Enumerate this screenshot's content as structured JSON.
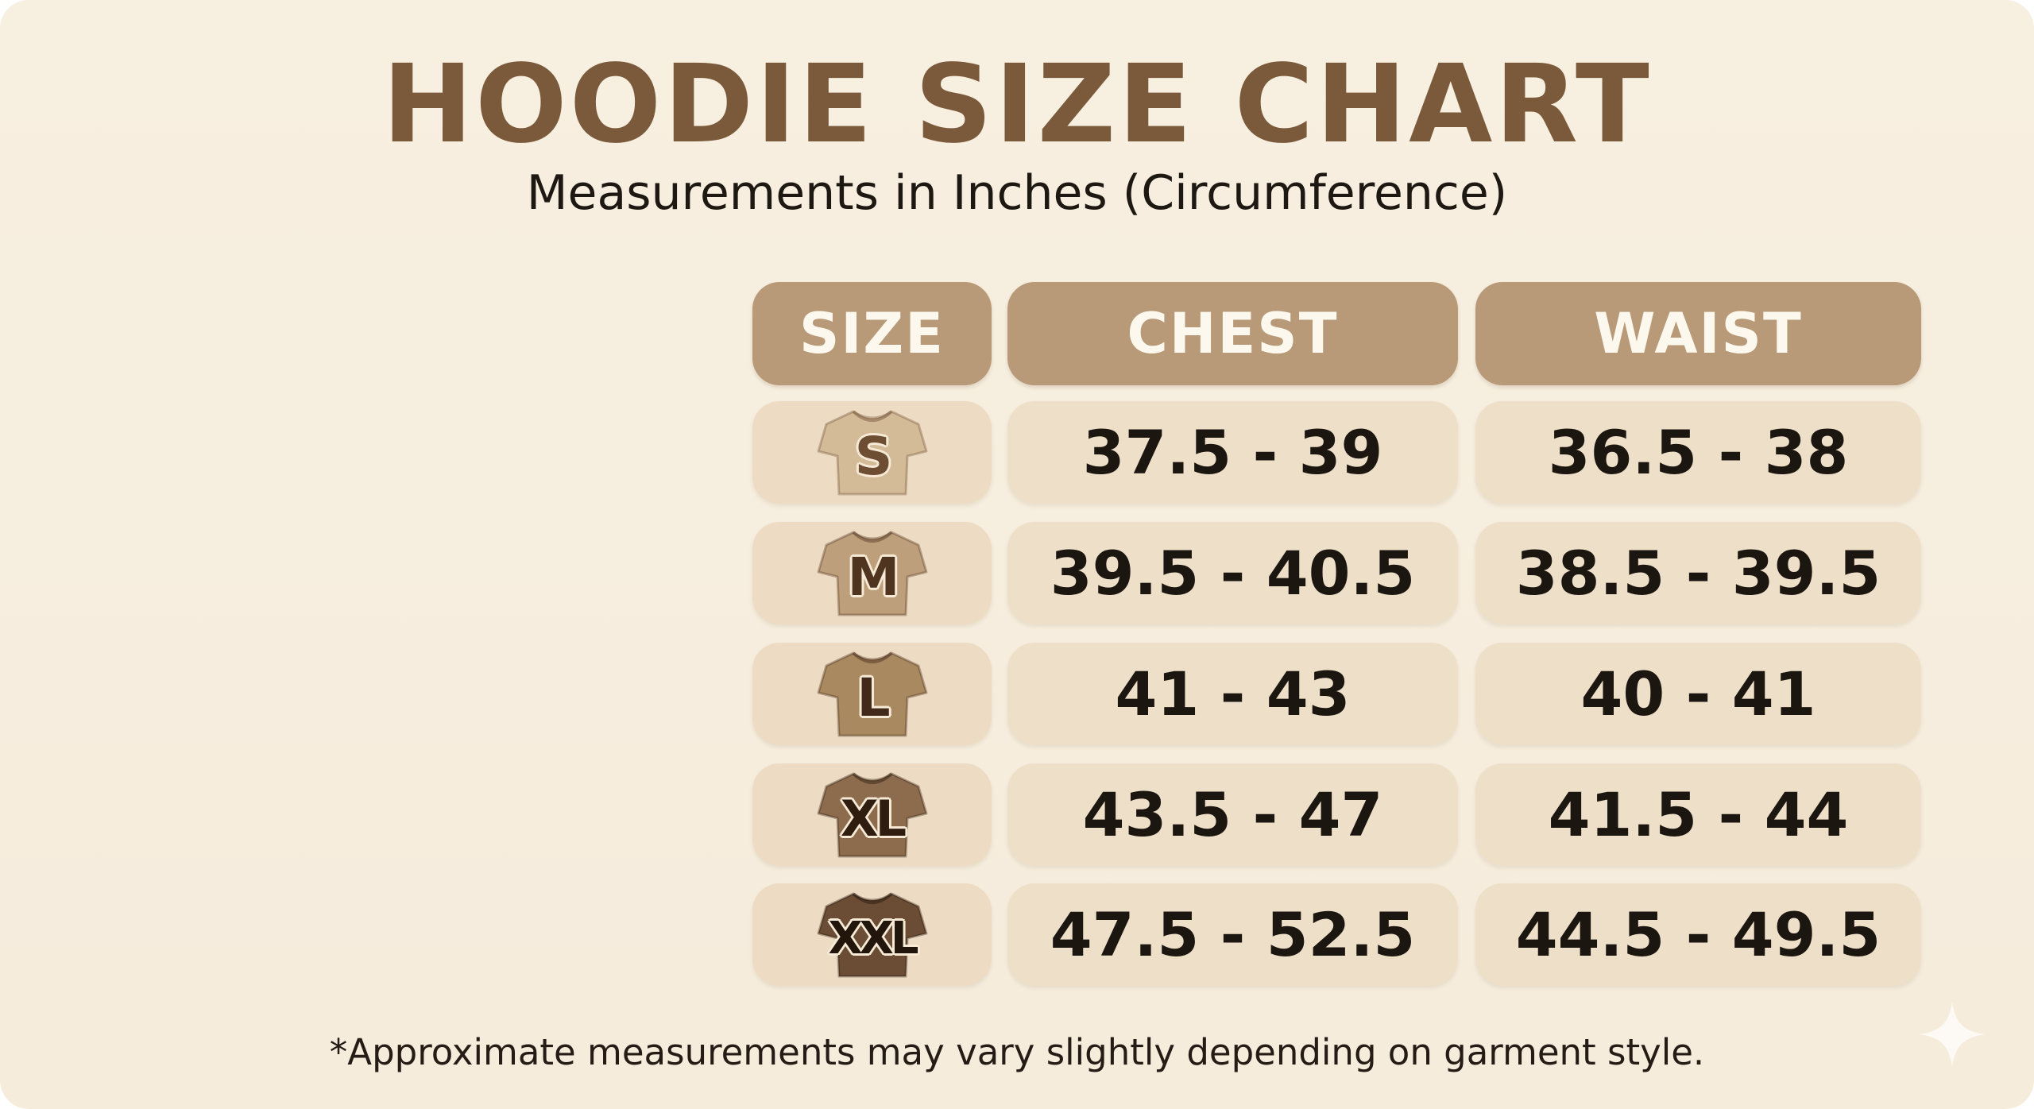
{
  "title": "HOODIE SIZE CHART",
  "subtitle": "Measurements in Inches (Circumference)",
  "footnote": "*Approximate measurements may vary slightly depending on garment style.",
  "colors": {
    "background": "#f7efe0",
    "title": "#7b5a3c",
    "header_fill": "#b89a78",
    "header_text": "#fdf8ee",
    "cell_fill": "#eedfc8",
    "value_text": "#1c1610"
  },
  "chart_data": {
    "type": "table",
    "columns": [
      "SIZE",
      "CHEST",
      "WAIST"
    ],
    "rows": [
      {
        "size": "S",
        "chest": "37.5 - 39",
        "waist": "36.5 - 38",
        "icon": "tshirt-icon",
        "icon_color": "#d4bb98",
        "label_color": "#6e4e33"
      },
      {
        "size": "M",
        "chest": "39.5 - 40.5",
        "waist": "38.5 - 39.5",
        "icon": "tshirt-icon",
        "icon_color": "#bd9f7c",
        "label_color": "#4f3520"
      },
      {
        "size": "L",
        "chest": "41 - 43",
        "waist": "40 - 41",
        "icon": "tshirt-icon",
        "icon_color": "#a9895f",
        "label_color": "#42291a"
      },
      {
        "size": "XL",
        "chest": "43.5 - 47",
        "waist": "41.5 - 44",
        "icon": "tshirt-icon",
        "icon_color": "#8d6c4d",
        "label_color": "#2f1d10"
      },
      {
        "size": "XXL",
        "chest": "47.5 - 52.5",
        "waist": "44.5 - 49.5",
        "icon": "tshirt-icon",
        "icon_color": "#6b4d35",
        "label_color": "#22150b"
      }
    ]
  }
}
